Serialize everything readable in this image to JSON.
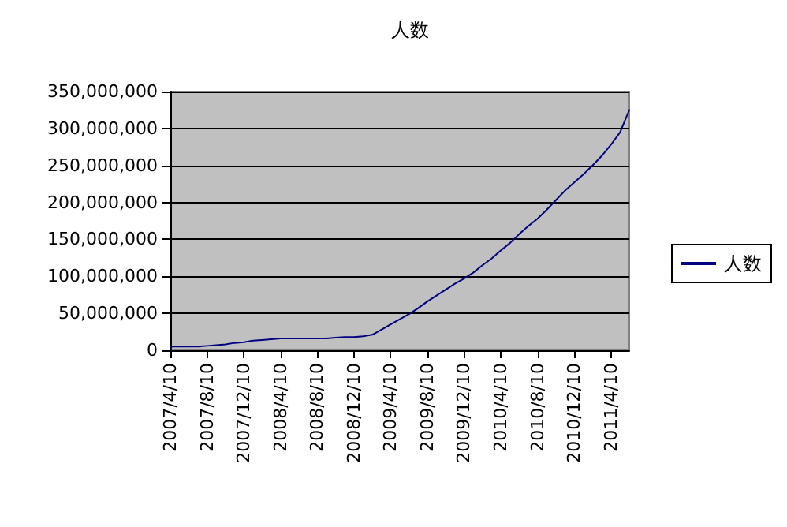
{
  "chart_data": {
    "type": "line",
    "title": "人数",
    "categories": [
      "2007/4/10",
      null,
      null,
      null,
      "2007/8/10",
      null,
      null,
      null,
      "2007/12/10",
      null,
      null,
      null,
      "2008/4/10",
      null,
      null,
      null,
      "2008/8/10",
      null,
      null,
      null,
      "2008/12/10",
      null,
      null,
      null,
      "2009/4/10",
      null,
      null,
      null,
      "2009/8/10",
      null,
      null,
      null,
      "2009/12/10",
      null,
      null,
      null,
      "2010/4/10",
      null,
      null,
      null,
      "2010/8/10",
      null,
      null,
      null,
      "2010/12/10",
      null,
      null,
      null,
      "2011/4/10",
      null,
      null
    ],
    "series": [
      {
        "name": "人数",
        "color": "#000080",
        "values": [
          5000000,
          5000000,
          5000000,
          5000000,
          6000000,
          7000000,
          8000000,
          10000000,
          11000000,
          13000000,
          14000000,
          15000000,
          16000000,
          16000000,
          16000000,
          16000000,
          16000000,
          16000000,
          17000000,
          18000000,
          18000000,
          19000000,
          21000000,
          28000000,
          35000000,
          42000000,
          49000000,
          57000000,
          66000000,
          74000000,
          82000000,
          90000000,
          97000000,
          105000000,
          115000000,
          124000000,
          135000000,
          145000000,
          157000000,
          168000000,
          178000000,
          190000000,
          203000000,
          216000000,
          227000000,
          238000000,
          250000000,
          263000000,
          278000000,
          295000000,
          325000000
        ]
      }
    ],
    "ylim": [
      0,
      350000000
    ],
    "yticks": [
      0,
      {
        "value": 50000000,
        "label": "50,000,000"
      },
      {
        "value": 100000000,
        "label": "100,000,000"
      },
      {
        "value": 150000000,
        "label": "150,000,000"
      },
      {
        "value": 200000000,
        "label": "200,000,000"
      },
      {
        "value": 250000000,
        "label": "250,000,000"
      },
      {
        "value": 300000000,
        "label": "300,000,000"
      },
      {
        "value": 350000000,
        "label": "350,000,000"
      }
    ],
    "grid": "y",
    "legend": "right",
    "marker": "none",
    "line_style": "solid"
  }
}
